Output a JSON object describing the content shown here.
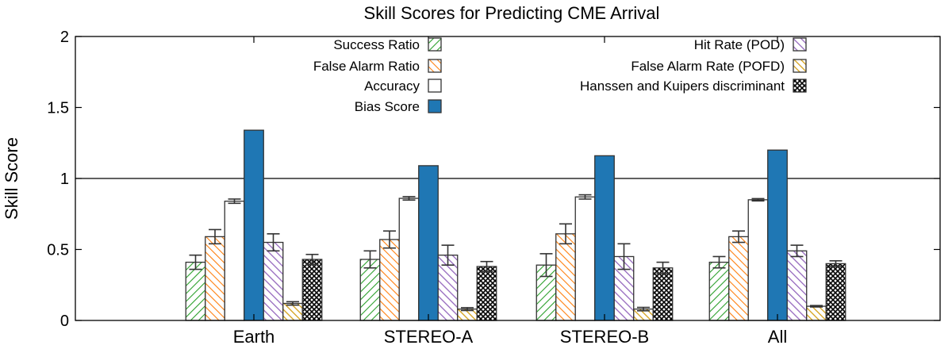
{
  "chart_data": {
    "type": "bar",
    "title": "Skill Scores for Predicting CME Arrival",
    "xlabel": "",
    "ylabel": "Skill Score",
    "ylim": [
      0,
      2
    ],
    "yticks": [
      "0",
      "0.5",
      "1",
      "1.5",
      "2"
    ],
    "ytick_values": [
      0,
      0.5,
      1,
      1.5,
      2
    ],
    "reference_line": 1,
    "categories": [
      "Earth",
      "STEREO-A",
      "STEREO-B",
      "All"
    ],
    "legend": {
      "placement": "top",
      "columns": 2
    },
    "series": [
      {
        "name": "Success Ratio",
        "color": "#2ca02c",
        "pattern": "diag-green",
        "values": [
          0.41,
          0.43,
          0.39,
          0.41
        ],
        "errors": [
          0.05,
          0.06,
          0.08,
          0.04
        ]
      },
      {
        "name": "False Alarm Ratio",
        "color": "#ff7f0e",
        "pattern": "diag-orange",
        "values": [
          0.59,
          0.57,
          0.61,
          0.59
        ],
        "errors": [
          0.05,
          0.06,
          0.07,
          0.04
        ]
      },
      {
        "name": "Accuracy",
        "color": "#ffffff",
        "pattern": "none",
        "values": [
          0.84,
          0.86,
          0.87,
          0.85
        ],
        "errors": [
          0.015,
          0.012,
          0.015,
          0.008
        ]
      },
      {
        "name": "Bias Score",
        "color": "#1f77b4",
        "pattern": "solid",
        "values": [
          1.34,
          1.09,
          1.16,
          1.2
        ],
        "errors": [
          0,
          0,
          0,
          0
        ]
      },
      {
        "name": "Hit Rate (POD)",
        "color": "#9467bd",
        "pattern": "diag-purple",
        "values": [
          0.55,
          0.46,
          0.45,
          0.49
        ],
        "errors": [
          0.06,
          0.07,
          0.09,
          0.04
        ]
      },
      {
        "name": "False Alarm Rate (POFD)",
        "color": "#d4a017",
        "pattern": "diag-gold",
        "values": [
          0.12,
          0.08,
          0.08,
          0.1
        ],
        "errors": [
          0.012,
          0.01,
          0.012,
          0.005
        ]
      },
      {
        "name": "Hanssen and Kuipers discriminant",
        "color": "#000000",
        "pattern": "crosshatch",
        "values": [
          0.43,
          0.38,
          0.37,
          0.4
        ],
        "errors": [
          0.035,
          0.035,
          0.04,
          0.02
        ]
      }
    ]
  }
}
